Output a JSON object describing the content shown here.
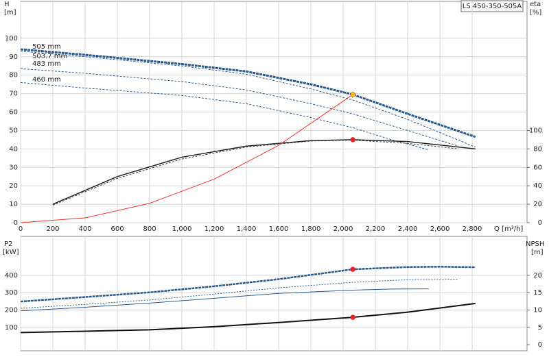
{
  "chart_data": [
    {
      "type": "line",
      "title": "LS 450-350-505A",
      "y_label": "H",
      "y_unit": "[m]",
      "y2_label": "eta",
      "y2_unit": "[%]",
      "x_label": "Q [m³/h]",
      "xlim": [
        0,
        3140
      ],
      "ylim": [
        0,
        120
      ],
      "y2lim": [
        0,
        240
      ],
      "xticks": [
        0,
        200,
        400,
        600,
        800,
        {
          "value": 1000,
          "label": "1,000"
        },
        {
          "value": 1200,
          "label": "1,200"
        },
        {
          "value": 1400,
          "label": "1,400"
        },
        {
          "value": 1600,
          "label": "1,600"
        },
        {
          "value": 1800,
          "label": "1,800"
        },
        {
          "value": 2000,
          "label": "2,000"
        },
        {
          "value": 2200,
          "label": "2,200"
        },
        {
          "value": 2400,
          "label": "2,400"
        },
        {
          "value": 2600,
          "label": "2,600"
        },
        {
          "value": 2800,
          "label": "2,800"
        }
      ],
      "yticks": [
        0,
        10,
        20,
        30,
        40,
        50,
        60,
        70,
        80,
        90,
        100
      ],
      "y2ticks": [
        0,
        20,
        40,
        60,
        80,
        100
      ],
      "grid": true,
      "series": [
        {
          "name": "505 mm",
          "color": "#2a5a8c",
          "width": 3,
          "dash": "4 1",
          "x": [
            0,
            400,
            1000,
            1400,
            1800,
            2060,
            2400,
            2820
          ],
          "values": [
            94,
            91,
            86,
            82,
            75,
            69.5,
            59,
            46.5
          ]
        },
        {
          "name": "503.7 mm",
          "color": "#2a5a8c",
          "width": 1,
          "dash": "3 2",
          "x": [
            0,
            400,
            1000,
            1400,
            1800,
            2060,
            2400,
            2820
          ],
          "values": [
            93,
            90,
            85,
            80.5,
            72.5,
            66.5,
            56,
            41
          ]
        },
        {
          "name": "483 mm",
          "color": "#2a5a8c",
          "width": 1,
          "dash": "3 2",
          "x": [
            0,
            400,
            1000,
            1400,
            1800,
            2060,
            2400,
            2715
          ],
          "values": [
            83.5,
            81,
            76.5,
            72,
            64.5,
            59,
            50,
            41.5
          ]
        },
        {
          "name": "460 mm",
          "color": "#2a5a8c",
          "width": 1,
          "dash": "3 2",
          "x": [
            0,
            400,
            1000,
            1400,
            1800,
            2060,
            2300,
            2530
          ],
          "values": [
            76,
            73,
            69,
            64.5,
            57,
            51.5,
            45,
            39.5
          ]
        },
        {
          "color": "#222",
          "width": 1.5,
          "axis": "y2",
          "x": [
            200,
            600,
            1000,
            1400,
            1800,
            2060,
            2400,
            2820
          ],
          "values": [
            20,
            50,
            71,
            83,
            89,
            90,
            88,
            80
          ]
        },
        {
          "color": "#444",
          "width": 1,
          "dash": "3 2",
          "axis": "y2",
          "x": [
            200,
            600,
            1000,
            1400,
            1800,
            2060,
            2400,
            2715
          ],
          "values": [
            19,
            48,
            69,
            82,
            88.5,
            89.5,
            86,
            80
          ]
        },
        {
          "color": "#ee3333",
          "width": 1,
          "x": [
            0,
            400,
            800,
            1200,
            1600,
            2060
          ],
          "values": [
            0,
            2.6,
            10.5,
            23.6,
            41.9,
            69.5
          ]
        }
      ],
      "markers": [
        {
          "x": 2060,
          "y": 69.5,
          "color": "#f5b800"
        },
        {
          "x": 2060,
          "y": 90,
          "axis": "y2",
          "color": "#ee2222"
        }
      ]
    },
    {
      "type": "line",
      "y_label": "P2",
      "y_unit": "[kW]",
      "y2_label": "NPSH",
      "y2_unit": "[m]",
      "xlim": [
        0,
        3140
      ],
      "ylim": [
        -35,
        625
      ],
      "y2lim": [
        -1.75,
        31.25
      ],
      "xticks": [
        0,
        200,
        400,
        600,
        800,
        1000,
        1200,
        1400,
        1600,
        1800,
        2000,
        2200,
        2400,
        2600,
        2800
      ],
      "yticks": [
        100,
        200,
        300,
        400
      ],
      "y2ticks": [
        0,
        5,
        10,
        15,
        20
      ],
      "grid": true,
      "series": [
        {
          "color": "#2a5a8c",
          "width": 2.5,
          "dash": "4 1",
          "x": [
            0,
            400,
            800,
            1200,
            1600,
            2060,
            2400,
            2600,
            2820
          ],
          "values": [
            249,
            275,
            302,
            337,
            378,
            435,
            448,
            450,
            447
          ]
        },
        {
          "color": "#2a5a8c",
          "width": 1,
          "dash": "2 2",
          "x": [
            0,
            400,
            800,
            1200,
            1600,
            2060,
            2400,
            2715
          ],
          "values": [
            210,
            233,
            258,
            292,
            328,
            360,
            375,
            378
          ]
        },
        {
          "color": "#2a5a8c",
          "width": 1,
          "x": [
            0,
            400,
            800,
            1200,
            1600,
            2060,
            2300,
            2530
          ],
          "values": [
            195,
            216,
            240,
            268,
            296,
            315,
            321,
            322
          ]
        },
        {
          "color": "#111",
          "width": 2,
          "axis": "y2",
          "x": [
            0,
            800,
            1200,
            1600,
            2060,
            2400,
            2820
          ],
          "values": [
            3.5,
            4.3,
            5.2,
            6.4,
            7.9,
            9.4,
            11.9
          ]
        }
      ],
      "markers": [
        {
          "x": 2060,
          "y": 435,
          "color": "#ee2222"
        },
        {
          "x": 2060,
          "y": 7.9,
          "axis": "y2",
          "color": "#ee2222"
        }
      ]
    }
  ]
}
